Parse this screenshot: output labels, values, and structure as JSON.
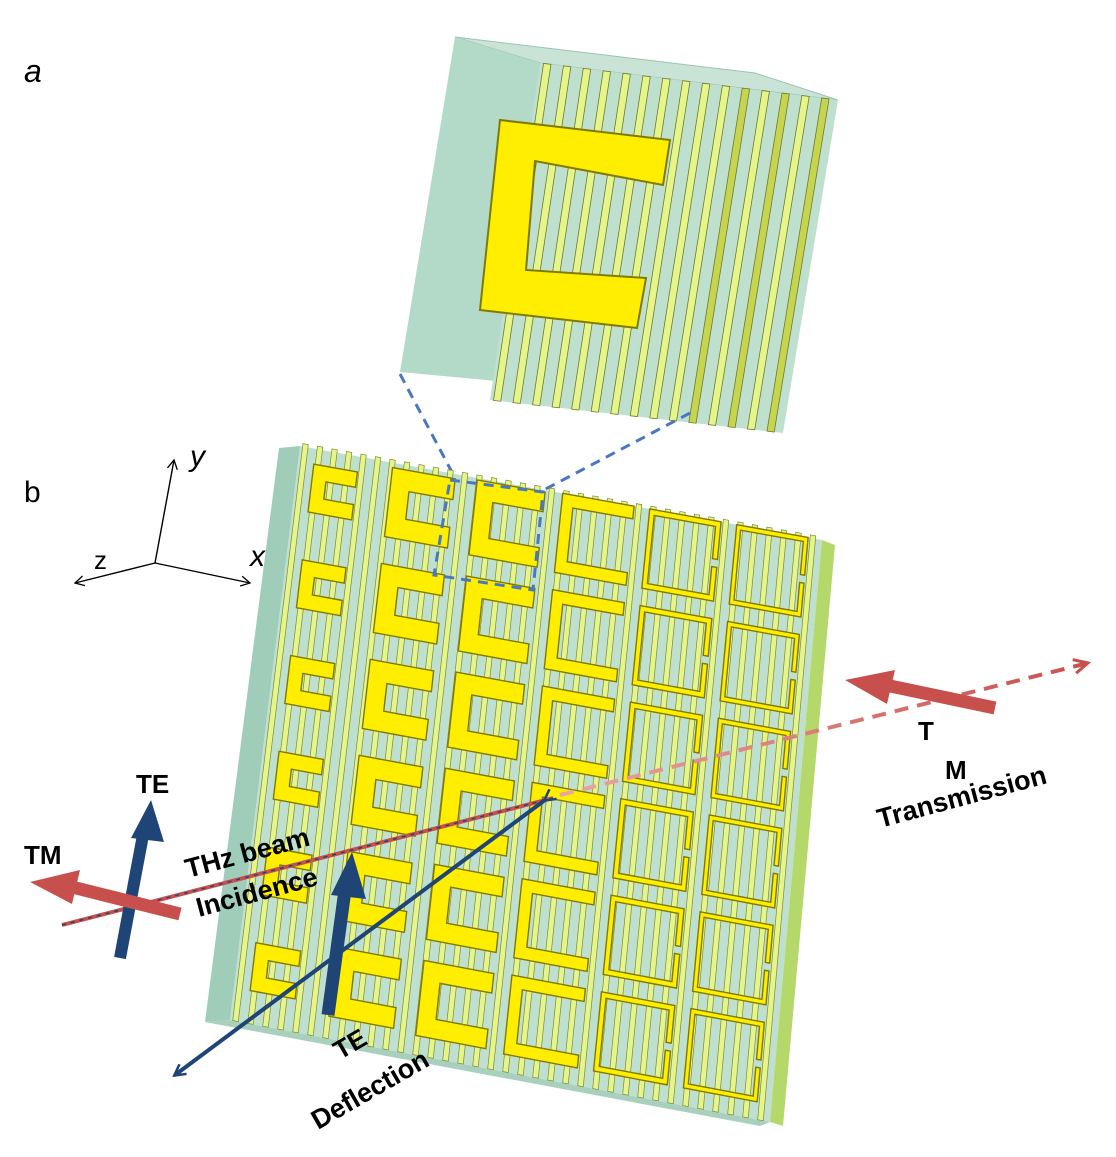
{
  "panel_labels": {
    "a": "a",
    "b": "b"
  },
  "axes": {
    "x": "x",
    "y": "y",
    "z": "z"
  },
  "annotations": {
    "te_left": "TE",
    "tm_left": "TM",
    "incidence_line1": "THz  beam",
    "incidence_line2": "Incidence",
    "te_deflection_line1": "TE",
    "te_deflection_line2": "Deflection",
    "tm_right_line1": "T",
    "tm_right_line2": "M",
    "transmission": "Transmission"
  },
  "metasurface": {
    "columns": 6,
    "rows": 6,
    "resonator_shape": "split-ring (C-shaped)",
    "grating": "metal wire grating"
  },
  "colors": {
    "substrate": "#b3d9c8",
    "stripe_light": "#e6f58a",
    "stripe_dark": "#c7d44e",
    "resonator": "#ffee00",
    "resonator_outline": "#807a00",
    "te_arrow": "#1f4577",
    "tm_arrow": "#c8504c",
    "zoom_box": "#4a78c0"
  }
}
